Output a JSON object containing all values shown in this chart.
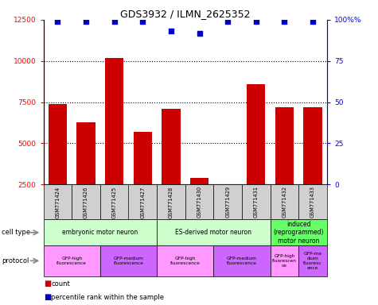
{
  "title": "GDS3932 / ILMN_2625352",
  "samples": [
    "GSM771424",
    "GSM771426",
    "GSM771425",
    "GSM771427",
    "GSM771428",
    "GSM771430",
    "GSM771429",
    "GSM771431",
    "GSM771432",
    "GSM771433"
  ],
  "counts": [
    7400,
    6300,
    10200,
    5700,
    7100,
    2900,
    2400,
    8600,
    7200,
    7200
  ],
  "percentiles": [
    99,
    99,
    99,
    99,
    93,
    92,
    99,
    99,
    99,
    99
  ],
  "bar_color": "#cc0000",
  "dot_color": "#0000cc",
  "ylim_left": [
    2500,
    12500
  ],
  "ylim_right": [
    0,
    100
  ],
  "yticks_left": [
    2500,
    5000,
    7500,
    10000,
    12500
  ],
  "yticks_right": [
    0,
    25,
    50,
    75,
    100
  ],
  "dotted_lines": [
    5000,
    7500,
    10000
  ],
  "cell_type_groups": [
    {
      "label": "embryonic motor neuron",
      "start": 0,
      "end": 4,
      "color": "#ccffcc"
    },
    {
      "label": "ES-derived motor neuron",
      "start": 4,
      "end": 8,
      "color": "#ccffcc"
    },
    {
      "label": "induced\n(reprogrammed)\nmotor neuron",
      "start": 8,
      "end": 10,
      "color": "#66ff66"
    }
  ],
  "protocol_groups": [
    {
      "label": "GFP-high\nfluorescence",
      "start": 0,
      "end": 2,
      "color": "#ff99ff"
    },
    {
      "label": "GFP-medium\nfluorescence",
      "start": 2,
      "end": 4,
      "color": "#cc66ff"
    },
    {
      "label": "GFP-high\nfluorescence",
      "start": 4,
      "end": 6,
      "color": "#ff99ff"
    },
    {
      "label": "GFP-medium\nfluorescence",
      "start": 6,
      "end": 8,
      "color": "#cc66ff"
    },
    {
      "label": "GFP-high\nfluorescen\nce",
      "start": 8,
      "end": 9,
      "color": "#ff99ff"
    },
    {
      "label": "GFP-me\ndium\nfluoresc\nence",
      "start": 9,
      "end": 10,
      "color": "#cc66ff"
    }
  ],
  "legend_items": [
    {
      "label": "count",
      "color": "#cc0000"
    },
    {
      "label": "percentile rank within the sample",
      "color": "#0000cc"
    }
  ],
  "background_color": "#ffffff",
  "sample_box_color": "#d0d0d0"
}
